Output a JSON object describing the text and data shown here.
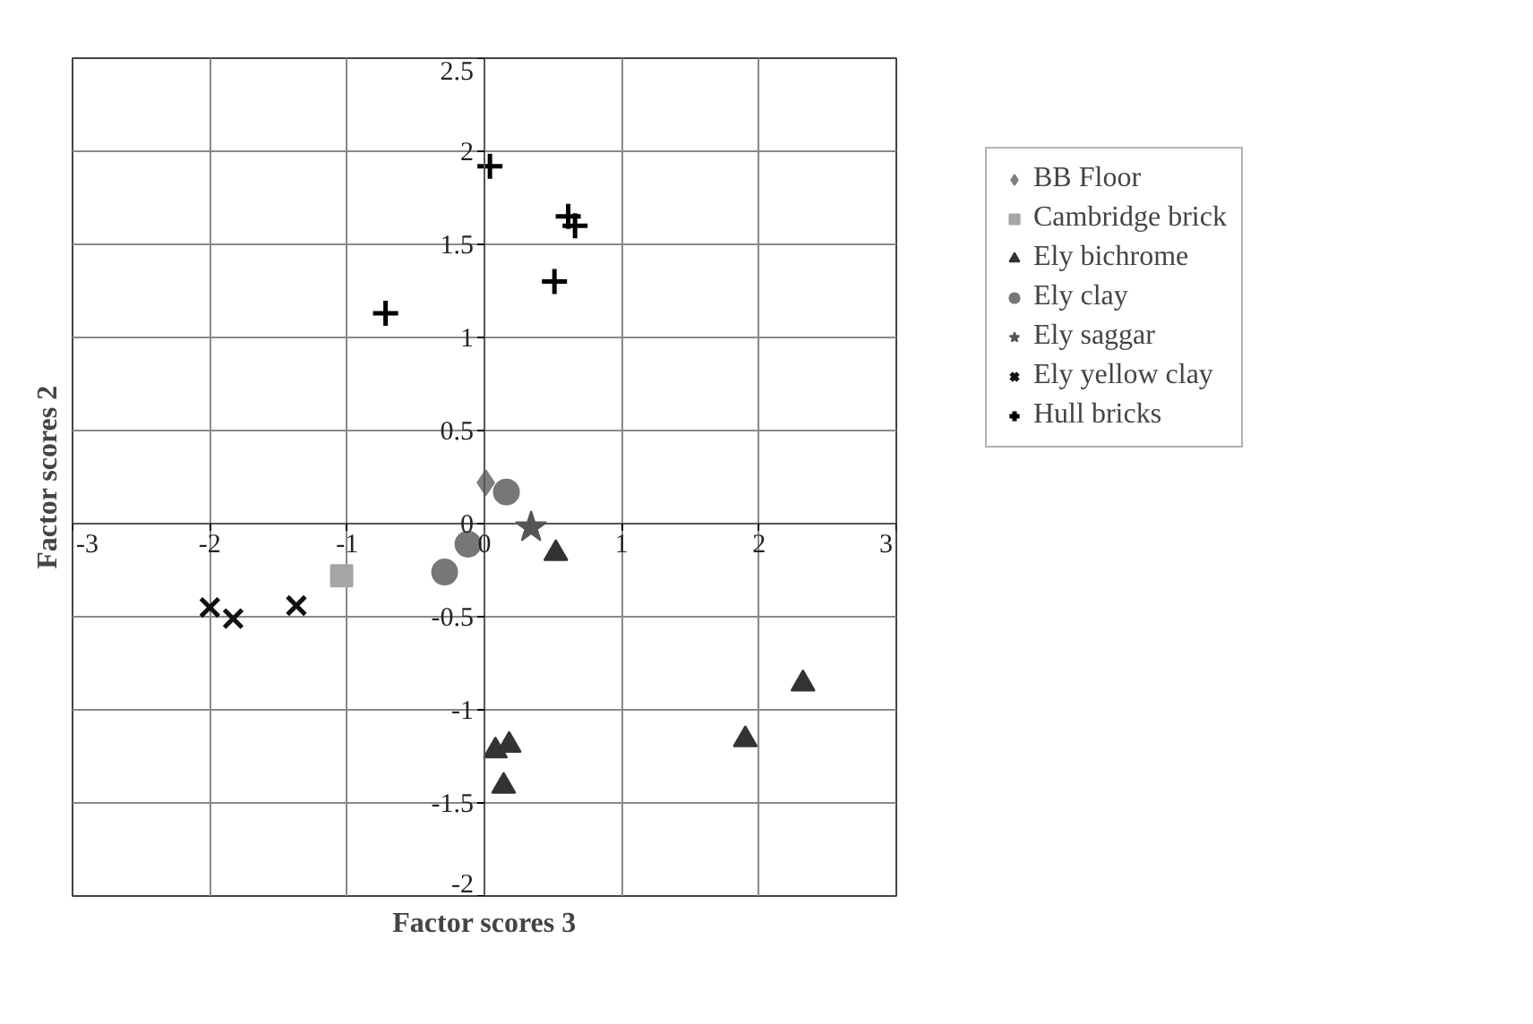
{
  "chart_data": {
    "type": "scatter",
    "xlabel": "Factor scores 3",
    "ylabel": "Factor scores 2",
    "xlim": [
      -3,
      3
    ],
    "ylim": [
      -2,
      2.5
    ],
    "xticks": [
      -3,
      -2,
      -1,
      0,
      1,
      2,
      3
    ],
    "yticks": [
      -2,
      -1.5,
      -1,
      -0.5,
      0,
      0.5,
      1,
      1.5,
      2,
      2.5
    ],
    "grid": true,
    "legend": "right",
    "series": [
      {
        "name": "BB Floor",
        "color": "#7f7f7f",
        "marker": "diamond",
        "x": [
          0.01
        ],
        "values": [
          0.22
        ]
      },
      {
        "name": "Cambridge brick",
        "color": "#a6a6a6",
        "marker": "square",
        "x": [
          -1.04
        ],
        "values": [
          -0.28
        ]
      },
      {
        "name": "Ely bichrome",
        "color": "#333333",
        "marker": "triangle",
        "x": [
          0.52,
          2.32,
          1.9,
          0.08,
          0.18,
          0.14
        ],
        "values": [
          -0.16,
          -0.86,
          -1.16,
          -1.22,
          -1.19,
          -1.41
        ]
      },
      {
        "name": "Ely clay",
        "color": "#777777",
        "marker": "circle",
        "x": [
          0.16,
          -0.12,
          -0.29
        ],
        "values": [
          0.17,
          -0.11,
          -0.26
        ]
      },
      {
        "name": "Ely saggar",
        "color": "#555555",
        "marker": "star",
        "x": [
          0.34
        ],
        "values": [
          -0.02
        ]
      },
      {
        "name": "Ely yellow clay",
        "color": "#111111",
        "marker": "x",
        "x": [
          -2.0,
          -1.83,
          -1.37
        ],
        "values": [
          -0.45,
          -0.51,
          -0.44
        ]
      },
      {
        "name": "Hull bricks",
        "color": "#000000",
        "marker": "cross",
        "x": [
          0.04,
          -0.72,
          0.61,
          0.66,
          0.51
        ],
        "values": [
          1.92,
          1.13,
          1.65,
          1.6,
          1.3
        ]
      }
    ]
  }
}
